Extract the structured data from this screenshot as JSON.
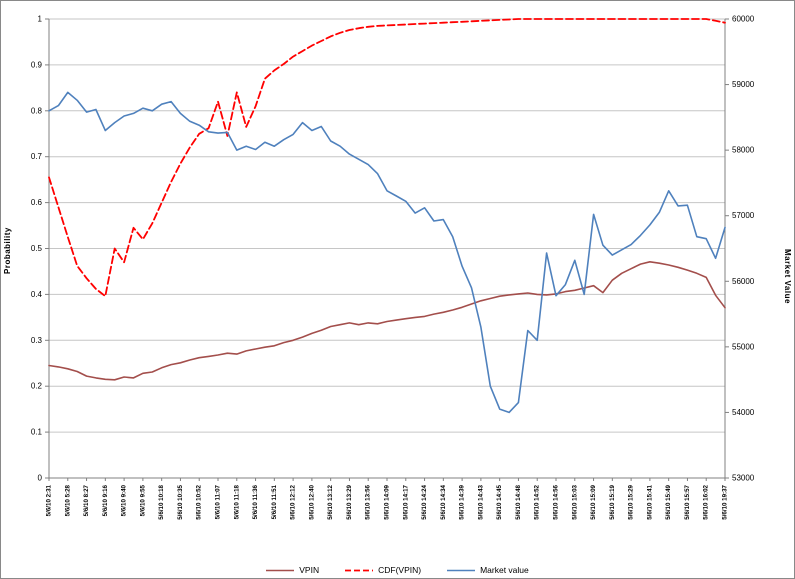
{
  "chart_data": {
    "type": "line",
    "title": "",
    "left_axis": {
      "label": "Probability",
      "min": 0,
      "max": 1,
      "step": 0.1
    },
    "right_axis": {
      "label": "Market Value",
      "min": 53000,
      "max": 60000,
      "step": 1000
    },
    "grid": true,
    "legend_position": "bottom",
    "x_labels": [
      "5/6/10 2:31",
      "5/6/10 5:28",
      "5/6/10 8:27",
      "5/6/10 9:16",
      "5/6/10 9:40",
      "5/6/10 9:55",
      "5/6/10 10:18",
      "5/6/10 10:35",
      "5/6/10 10:52",
      "5/6/10 11:07",
      "5/6/10 11:18",
      "5/6/10 11:36",
      "5/6/10 11:51",
      "5/6/10 12:12",
      "5/6/10 12:40",
      "5/6/10 13:12",
      "5/6/10 13:29",
      "5/6/10 13:56",
      "5/6/10 14:09",
      "5/6/10 14:17",
      "5/6/10 14:24",
      "5/6/10 14:34",
      "5/6/10 14:39",
      "5/6/10 14:43",
      "5/6/10 14:45",
      "5/6/10 14:48",
      "5/6/10 14:52",
      "5/6/10 14:56",
      "5/6/10 15:03",
      "5/6/10 15:09",
      "5/6/10 15:19",
      "5/6/10 15:29",
      "5/6/10 15:41",
      "5/6/10 15:49",
      "5/6/10 15:57",
      "5/6/10 16:02",
      "5/6/10 19:37"
    ],
    "series": [
      {
        "name": "VPIN",
        "color": "#A34E4B",
        "dash": "solid",
        "axis": "left",
        "values": [
          0.245,
          0.242,
          0.238,
          0.232,
          0.222,
          0.218,
          0.215,
          0.214,
          0.22,
          0.218,
          0.228,
          0.231,
          0.24,
          0.247,
          0.251,
          0.257,
          0.262,
          0.265,
          0.268,
          0.272,
          0.27,
          0.277,
          0.281,
          0.285,
          0.288,
          0.295,
          0.3,
          0.307,
          0.315,
          0.322,
          0.33,
          0.334,
          0.338,
          0.334,
          0.338,
          0.336,
          0.341,
          0.344,
          0.347,
          0.35,
          0.352,
          0.357,
          0.361,
          0.366,
          0.372,
          0.379,
          0.386,
          0.391,
          0.396,
          0.399,
          0.401,
          0.403,
          0.4,
          0.399,
          0.401,
          0.406,
          0.409,
          0.414,
          0.419,
          0.404,
          0.431,
          0.446,
          0.456,
          0.466,
          0.471,
          0.468,
          0.464,
          0.459,
          0.453,
          0.446,
          0.437,
          0.398,
          0.371
        ]
      },
      {
        "name": "CDF(VPIN)",
        "color": "#FF0000",
        "dash": "dashed",
        "axis": "left",
        "values": [
          0.655,
          0.59,
          0.525,
          0.462,
          0.435,
          0.412,
          0.396,
          0.5,
          0.47,
          0.545,
          0.52,
          0.555,
          0.6,
          0.645,
          0.685,
          0.72,
          0.75,
          0.762,
          0.82,
          0.745,
          0.84,
          0.765,
          0.81,
          0.87,
          0.888,
          0.902,
          0.918,
          0.93,
          0.942,
          0.952,
          0.962,
          0.97,
          0.976,
          0.98,
          0.983,
          0.985,
          0.986,
          0.987,
          0.988,
          0.989,
          0.99,
          0.991,
          0.992,
          0.993,
          0.994,
          0.995,
          0.996,
          0.997,
          0.998,
          0.999,
          1.0,
          1.0,
          1.0,
          1.0,
          1.0,
          1.0,
          1.0,
          1.0,
          1.0,
          1.0,
          1.0,
          1.0,
          1.0,
          1.0,
          1.0,
          1.0,
          1.0,
          1.0,
          1.0,
          1.0,
          1.0,
          0.996,
          0.992
        ]
      },
      {
        "name": "Market value",
        "color": "#4F81BD",
        "dash": "solid",
        "axis": "right",
        "values": [
          58600,
          58680,
          58880,
          58760,
          58580,
          58620,
          58300,
          58420,
          58520,
          58560,
          58640,
          58600,
          58700,
          58740,
          58560,
          58440,
          58380,
          58280,
          58260,
          58270,
          58000,
          58060,
          58010,
          58120,
          58060,
          58160,
          58240,
          58420,
          58300,
          58360,
          58140,
          58060,
          57940,
          57860,
          57780,
          57640,
          57380,
          57300,
          57220,
          57040,
          57120,
          56920,
          56940,
          56680,
          56230,
          55900,
          55300,
          54400,
          54050,
          54000,
          54150,
          55250,
          55100,
          56430,
          55780,
          55950,
          56320,
          55800,
          57020,
          56550,
          56400,
          56480,
          56560,
          56700,
          56860,
          57050,
          57380,
          57150,
          57160,
          56680,
          56650,
          56350,
          56820
        ]
      }
    ]
  }
}
